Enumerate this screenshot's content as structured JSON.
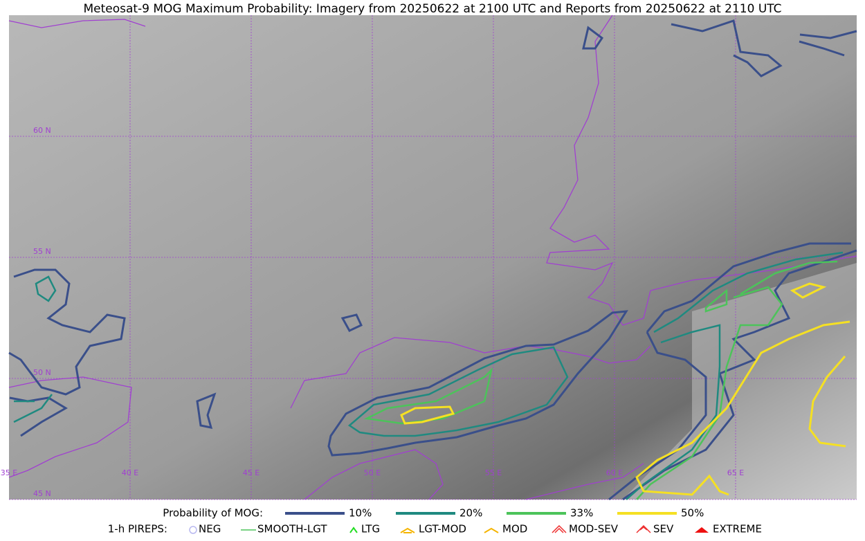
{
  "header": {
    "title": "Meteosat-9 MOG Maximum Probability: Imagery from 20250622 at 2100 UTC and Reports from 20250622 at 2110 UTC"
  },
  "map": {
    "lat_labels": [
      "60 N",
      "55 N",
      "50 N",
      "45 N"
    ],
    "lon_labels": [
      "35 E",
      "40 E",
      "45 E",
      "50 E",
      "55 E",
      "60 E",
      "65 E"
    ]
  },
  "legend": {
    "probability": {
      "title": "Probability of MOG:",
      "items": [
        "10%",
        "20%",
        "33%",
        "50%"
      ]
    },
    "pireps": {
      "title": "1-h PIREPS:",
      "items": [
        "NEG",
        "SMOOTH-LGT",
        "LTG",
        "LGT-MOD",
        "MOD",
        "MOD-SEV",
        "SEV",
        "EXTREME"
      ]
    }
  }
}
